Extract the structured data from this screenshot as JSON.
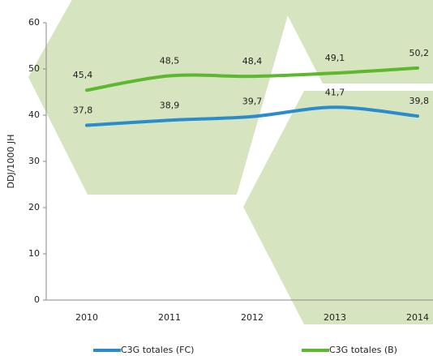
{
  "chart_data": {
    "type": "line",
    "y_label": "DDJ/1000 JH",
    "categories": [
      "2010",
      "2011",
      "2012",
      "2013",
      "2014"
    ],
    "series": [
      {
        "name": "C3G totales (FC)",
        "color": "#2a8ccc",
        "values": [
          37.8,
          38.9,
          39.7,
          41.7,
          39.8
        ],
        "value_labels": [
          "37,8",
          "38,9",
          "39,7",
          "41,7",
          "39,8"
        ]
      },
      {
        "name": "C3G totales (B)",
        "color": "#5cb82e",
        "values": [
          45.4,
          48.5,
          48.4,
          49.1,
          50.2
        ],
        "value_labels": [
          "45,4",
          "48,5",
          "48,4",
          "49,1",
          "50,2"
        ]
      }
    ],
    "ylim": [
      0,
      60
    ],
    "yticks": [
      0,
      10,
      20,
      30,
      40,
      50,
      60
    ]
  }
}
